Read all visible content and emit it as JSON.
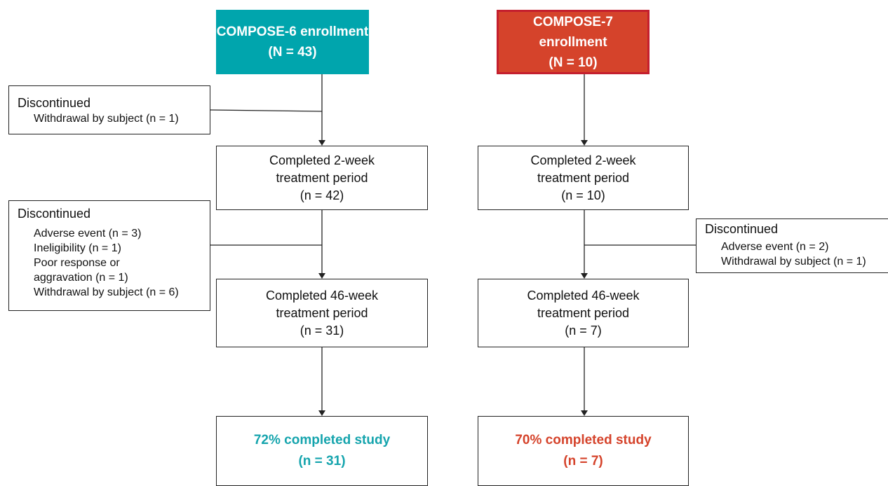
{
  "columns": [
    {
      "enrollment": {
        "title": "COMPOSE-6 enrollment",
        "n": "(N = 43)"
      },
      "steps": [
        {
          "lines": [
            "Completed 2-week",
            "treatment period",
            "(n = 42)"
          ]
        },
        {
          "lines": [
            "Completed 46-week",
            "treatment period",
            "(n = 31)"
          ]
        }
      ],
      "completion": {
        "title": "72% completed study",
        "n": "(n = 31)"
      },
      "discontinued": [
        {
          "heading": "Discontinued",
          "items": [
            "Withdrawal by subject (n = 1)"
          ]
        },
        {
          "heading": "Discontinued",
          "items": [
            "Adverse event (n = 3)",
            "Ineligibility (n = 1)",
            "Poor response or",
            "aggravation (n = 1)",
            "Withdrawal by subject (n = 6)"
          ]
        }
      ]
    },
    {
      "enrollment": {
        "title": "COMPOSE-7 enrollment",
        "n": "(N = 10)"
      },
      "steps": [
        {
          "lines": [
            "Completed 2-week",
            "treatment period",
            "(n = 10)"
          ]
        },
        {
          "lines": [
            "Completed 46-week",
            "treatment period",
            "(n = 7)"
          ]
        }
      ],
      "completion": {
        "title": "70% completed study",
        "n": "(n = 7)"
      },
      "discontinued": [
        {
          "heading": "Discontinued",
          "items": [
            "Adverse event (n = 2)",
            "Withdrawal by subject (n = 1)"
          ]
        }
      ]
    }
  ]
}
